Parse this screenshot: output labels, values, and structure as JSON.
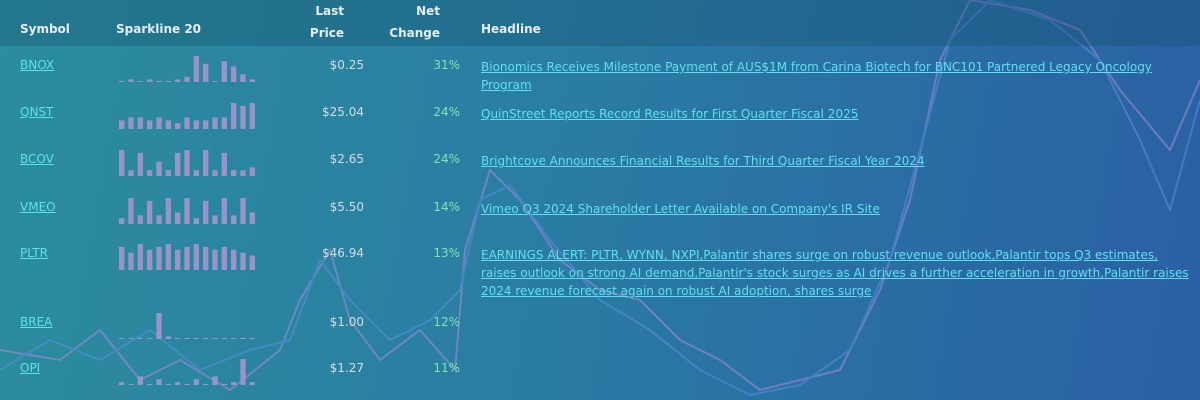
{
  "header": {
    "symbol": "Symbol",
    "sparkline": "Sparkline 20",
    "price": "Last\nPrice",
    "change": "Net\nChange",
    "headline": "Headline"
  },
  "rows": [
    {
      "symbol": "BNOX",
      "price": "$0.25",
      "change": "31%",
      "headline": "Bionomics Receives Milestone Payment of AUS$1M from Carina Biotech for BNC101 Partnered Legacy Oncology Program",
      "spark": [
        0,
        1,
        0,
        1,
        0,
        0,
        1,
        2,
        10,
        7,
        0,
        8,
        6,
        3,
        1
      ]
    },
    {
      "symbol": "QNST",
      "price": "$25.04",
      "change": "24%",
      "headline": "QuinStreet Reports Record Results for First Quarter Fiscal 2025",
      "spark": [
        3,
        4,
        4,
        3,
        4,
        3,
        2,
        4,
        3,
        3,
        4,
        4,
        9,
        8,
        9
      ]
    },
    {
      "symbol": "BCOV",
      "price": "$2.65",
      "change": "24%",
      "headline": "Brightcove Announces Financial Results for Third Quarter Fiscal Year 2024",
      "spark": [
        9,
        2,
        8,
        2,
        5,
        2,
        8,
        9,
        2,
        9,
        2,
        8,
        2,
        2,
        3
      ]
    },
    {
      "symbol": "VMEO",
      "price": "$5.50",
      "change": "14%",
      "headline": "Vimeo Q3 2024 Shareholder Letter Available on Company's IR Site",
      "spark": [
        2,
        9,
        3,
        8,
        3,
        9,
        4,
        9,
        2,
        8,
        3,
        9,
        3,
        9,
        4
      ]
    },
    {
      "symbol": "PLTR",
      "price": "$46.94",
      "change": "13%",
      "headline": "EARNINGS ALERT: PLTR, WYNN, NXPI,Palantir shares surge on robust revenue outlook,Palantir tops Q3 estimates, raises outlook on strong AI demand,Palantir's stock surges as AI drives a further acceleration in growth,Palantir raises 2024 revenue forecast again on robust AI adoption, shares surge",
      "spark": [
        8,
        6,
        9,
        7,
        8,
        9,
        7,
        8,
        9,
        8,
        7,
        8,
        7,
        6,
        5
      ]
    },
    {
      "symbol": "BREA",
      "price": "$1.00",
      "change": "12%",
      "headline": "",
      "spark": [
        0,
        0,
        0,
        0,
        10,
        1,
        0,
        0,
        0,
        0,
        0,
        0,
        0,
        0,
        0
      ]
    },
    {
      "symbol": "OPI",
      "price": "$1.27",
      "change": "11%",
      "headline": "",
      "spark": [
        1,
        0,
        3,
        0,
        2,
        0,
        1,
        0,
        2,
        0,
        3,
        0,
        1,
        9,
        1
      ]
    }
  ]
}
